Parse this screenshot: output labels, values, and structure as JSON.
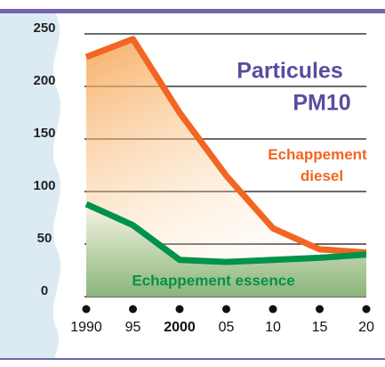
{
  "chart_data": {
    "type": "line",
    "title": "Particules",
    "subtitle": "PM10",
    "categories": [
      "1990",
      "95",
      "2000",
      "05",
      "10",
      "15",
      "20"
    ],
    "series": [
      {
        "name": "Echappement diesel",
        "color": "#f26522",
        "values": [
          228,
          245,
          175,
          115,
          65,
          45,
          42
        ]
      },
      {
        "name": "Echappement essence",
        "color": "#00924a",
        "values": [
          88,
          68,
          35,
          33,
          35,
          37,
          40
        ]
      }
    ],
    "ylim": [
      0,
      250
    ],
    "yticks": [
      0,
      50,
      100,
      150,
      200,
      250
    ],
    "grid": true
  }
}
